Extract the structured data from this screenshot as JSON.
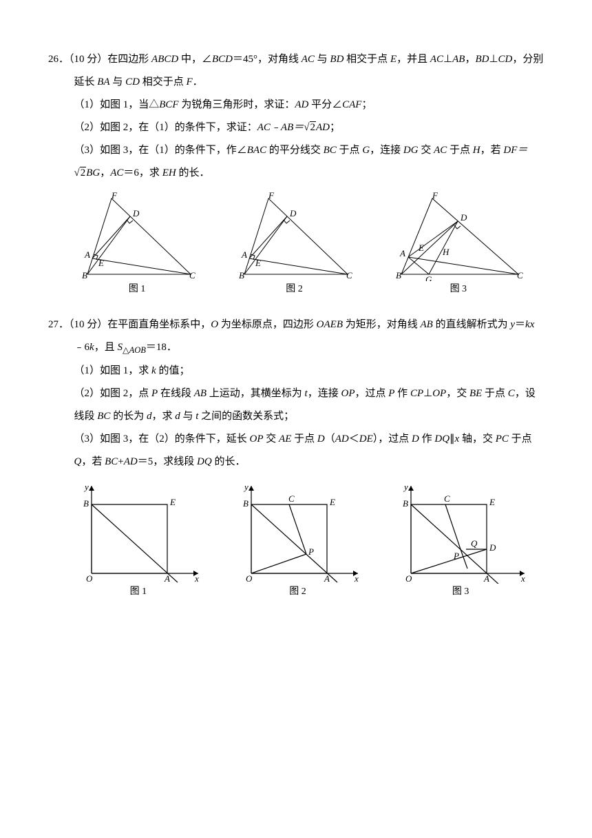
{
  "p26": {
    "num": "26",
    "points": "（10 分）",
    "head": "在四边形 <i>ABCD</i> 中，∠<i>BCD</i>＝45°，对角线 <i>AC</i> 与 <i>BD</i> 相交于点 <i>E</i>，并且 <i>AC</i>⊥<i>AB</i>，<i>BD</i>⊥<i>CD</i>，分别延长 <i>BA</i> 与 <i>CD</i> 相交于点 <i>F</i>．",
    "s1": "（1）如图 1，当△<i>BCF</i> 为锐角三角形时，求证：<i>AD</i> 平分∠<i>CAF</i>；",
    "s2_pre": "（2）如图 2，在（1）的条件下，求证：",
    "s2_post": "；",
    "s2_eq_l": "AC﹣AB＝",
    "s2_eq_r": "AD",
    "s2_rad": "2",
    "s3_pre": "（3）如图 3，在（1）的条件下，作∠<i>BAC</i> 的平分线交 <i>BC</i> 于点 <i>G</i>，连接 <i>DG</i> 交 <i>AC</i> 于点 <i>H</i>，若 ",
    "s3_eq_l": "DF＝",
    "s3_eq_r": "BG",
    "s3_rad": "2",
    "s3_post": "，<i>AC</i>＝6，求 <i>EH</i> 的长．",
    "fig1": "图 1",
    "fig2": "图 2",
    "fig3": "图 3",
    "svg": {
      "stroke": "#000",
      "sw": 1
    }
  },
  "p27": {
    "num": "27",
    "points": "（10 分）",
    "head": "在平面直角坐标系中，<i>O</i> 为坐标原点，四边形 <i>OAEB</i> 为矩形，对角线 <i>AB</i> 的直线解析式为 <i>y</i>＝<i>kx</i>﹣6<i>k</i>，且 <i>S</i><sub>△<i>AOB</i></sub>＝18．",
    "s1": "（1）如图 1，求 <i>k</i> 的值；",
    "s2": "（2）如图 2，点 <i>P</i> 在线段 <i>AB</i> 上运动，其横坐标为 <i>t</i>，连接 <i>OP</i>，过点 <i>P</i> 作 <i>CP</i>⊥<i>OP</i>，交 <i>BE</i> 于点 <i>C</i>，设线段 <i>BC</i> 的长为 <i>d</i>，求 <i>d</i> 与 <i>t</i> 之间的函数关系式；",
    "s3": "（3）如图 3，在（2）的条件下，延长 <i>OP</i> 交 <i>AE</i> 于点 <i>D</i>（<i>AD</i>＜<i>DE</i>），过点 <i>D</i> 作 <i>DQ</i>∥<i>x</i> 轴，交 <i>PC</i> 于点 <i>Q</i>，若 <i>BC</i>+<i>AD</i>＝5，求线段 <i>DQ</i> 的长．",
    "fig1": "图 1",
    "fig2": "图 2",
    "fig3": "图 3",
    "svg": {
      "stroke": "#000",
      "sw": 1.2
    }
  }
}
